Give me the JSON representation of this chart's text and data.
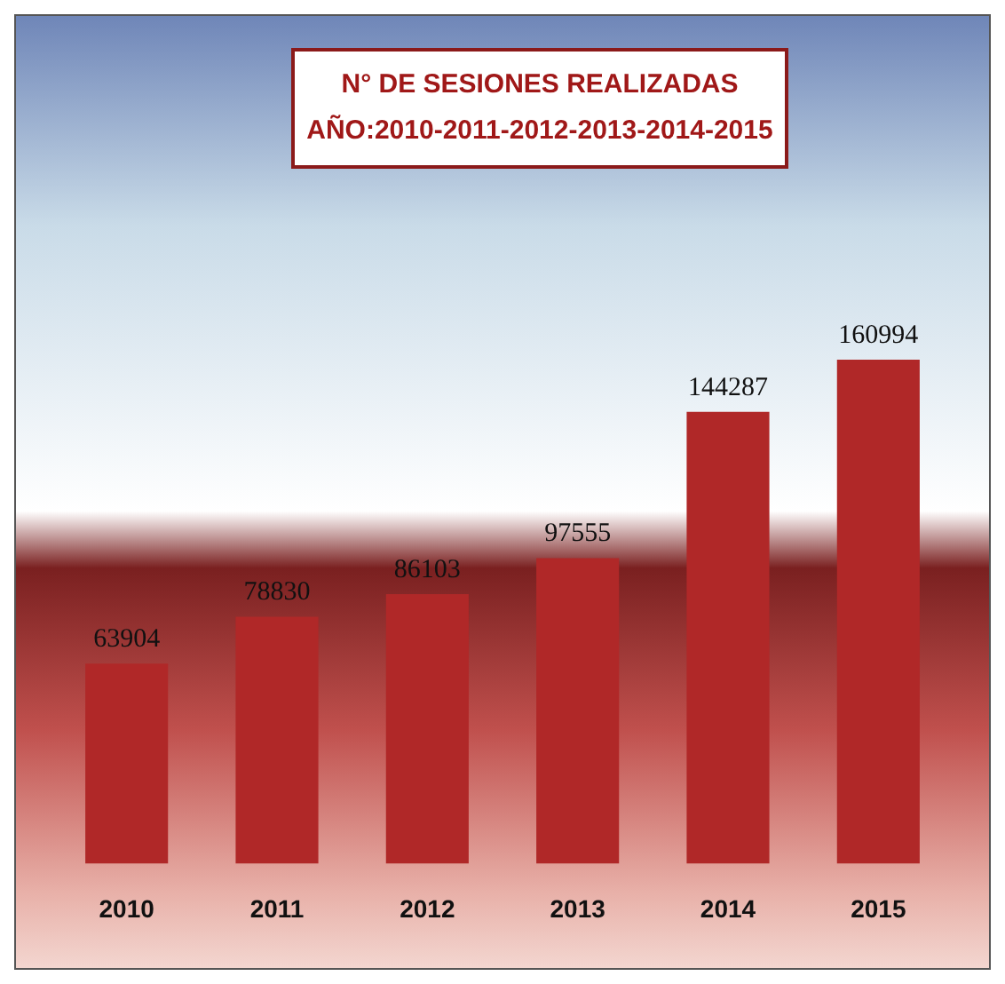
{
  "chart_data": {
    "type": "bar",
    "title": "N° DE SESIONES REALIZADAS",
    "subtitle": "AÑO:2010-2011-2012-2013-2014-2015",
    "categories": [
      "2010",
      "2011",
      "2012",
      "2013",
      "2014",
      "2015"
    ],
    "values": [
      63904,
      78830,
      86103,
      97555,
      144287,
      160994
    ],
    "color": "#b02828",
    "data_labels": true,
    "grid": false,
    "legend": false
  }
}
